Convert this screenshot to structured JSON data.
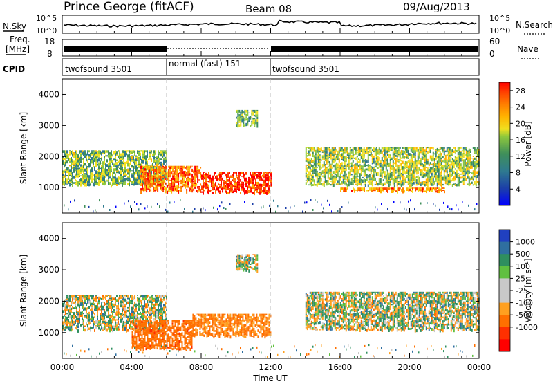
{
  "header": {
    "station": "Prince George (fitACF)",
    "beam": "Beam 08",
    "date": "09/Aug/2013"
  },
  "noise_panel": {
    "left_label": "N.Sky",
    "left_top": "10^5",
    "left_bottom": "10^0",
    "right_top": "10^5",
    "right_bottom": "10^0",
    "right_label": "N.Search"
  },
  "freq_panel": {
    "left_label_1": "Freq.",
    "left_label_2": "[MHz]",
    "left_top": "18",
    "left_bottom": "8",
    "right_top": "60",
    "right_bottom": "0",
    "right_label": "Nave"
  },
  "cpid": {
    "label": "CPID",
    "segments": [
      {
        "name": "twofsound 3501",
        "start": 0,
        "end": 6
      },
      {
        "name": "normal (fast) 151",
        "start": 6,
        "end": 12
      },
      {
        "name": "twofsound 3501",
        "start": 12,
        "end": 24
      }
    ]
  },
  "chart_data": [
    {
      "type": "heatmap",
      "panel": "power",
      "ylabel": "Slant Range [km]",
      "ylim": [
        180,
        4500
      ],
      "y_ticks": [
        "1000",
        "2000",
        "3000",
        "4000"
      ],
      "colorbar_title": "Power [dB]",
      "colorbar_ticks": [
        "4",
        "8",
        "12",
        "16",
        "20",
        "24",
        "28"
      ],
      "colors": [
        "#0000ff",
        "#1c3fa8",
        "#2f7a8f",
        "#3f8f5a",
        "#8fc83c",
        "#f0e020",
        "#ffb400",
        "#ff8000",
        "#ff4000",
        "#ff0000"
      ],
      "features": [
        {
          "x_start": 0.0,
          "x_end": 6.0,
          "y_start": 1100,
          "y_end": 2200,
          "level": 12
        },
        {
          "x_start": 4.5,
          "x_end": 8.0,
          "y_start": 900,
          "y_end": 1700,
          "level": 24
        },
        {
          "x_start": 8.0,
          "x_end": 12.0,
          "y_start": 850,
          "y_end": 1500,
          "level": 28
        },
        {
          "x_start": 10.0,
          "x_end": 11.2,
          "y_start": 3000,
          "y_end": 3500,
          "level": 12
        },
        {
          "x_start": 14.0,
          "x_end": 24.0,
          "y_start": 1100,
          "y_end": 2300,
          "level": 14
        },
        {
          "x_start": 16.0,
          "x_end": 22.0,
          "y_start": 900,
          "y_end": 1000,
          "level": 22
        }
      ]
    },
    {
      "type": "heatmap",
      "panel": "velocity",
      "ylabel": "Slant Range [km]",
      "ylim": [
        180,
        4500
      ],
      "y_ticks": [
        "1000",
        "2000",
        "3000",
        "4000"
      ],
      "colorbar_title": "Velocity [m s⁻¹]",
      "colorbar_ticks": [
        "1000",
        "500",
        "100",
        "25",
        "-25",
        "-100",
        "-500",
        "-1000"
      ],
      "colors": [
        "#2040c0",
        "#2f6fa0",
        "#2f8f5f",
        "#60c040",
        "#c8c8c8",
        "#c8c8c8",
        "#ffa020",
        "#ff7000",
        "#ff3000",
        "#ff0000"
      ],
      "features": [
        {
          "x_start": 0.0,
          "x_end": 6.0,
          "y_start": 1100,
          "y_end": 2200,
          "value": 0
        },
        {
          "x_start": 4.0,
          "x_end": 7.5,
          "y_start": 500,
          "y_end": 1400,
          "value": -400
        },
        {
          "x_start": 7.5,
          "x_end": 12.0,
          "y_start": 900,
          "y_end": 1600,
          "value": -150
        },
        {
          "x_start": 10.0,
          "x_end": 11.2,
          "y_start": 3000,
          "y_end": 3500,
          "value": 0
        },
        {
          "x_start": 14.0,
          "x_end": 24.0,
          "y_start": 1100,
          "y_end": 2300,
          "value": 0
        }
      ]
    }
  ],
  "x_axis": {
    "label": "Time UT",
    "ticks": [
      "00:00",
      "04:00",
      "08:00",
      "12:00",
      "16:00",
      "20:00",
      "00:00"
    ],
    "tick_hours": [
      0,
      4,
      8,
      12,
      16,
      20,
      24
    ]
  }
}
